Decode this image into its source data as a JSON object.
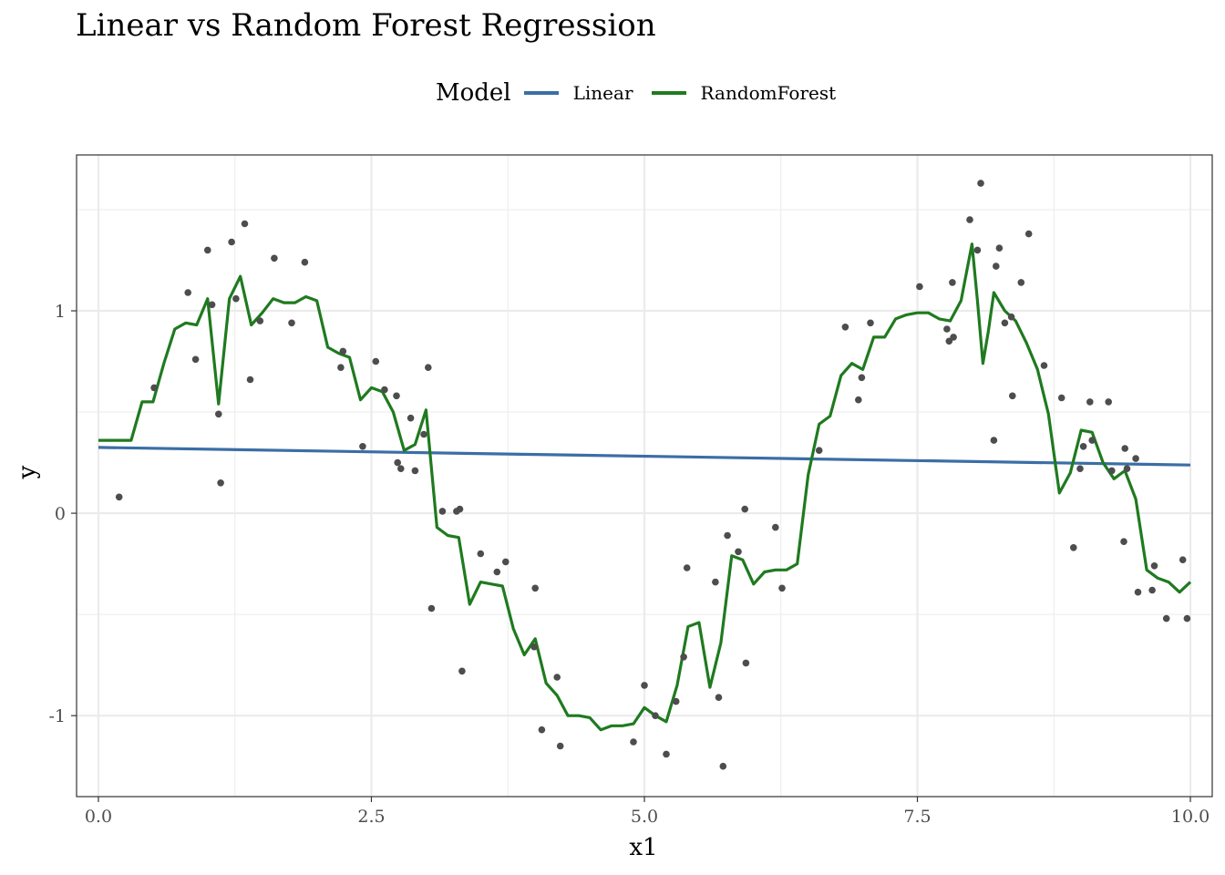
{
  "colors": {
    "linear": "#3b6ea5",
    "random_forest": "#1f7a1f",
    "points": "#4d4d4d",
    "grid": "#ebebeb",
    "panel_border": "#333333"
  },
  "chart_data": {
    "type": "scatter",
    "title": "Linear vs Random Forest Regression",
    "xlabel": "x1",
    "ylabel": "y",
    "xlim": [
      -0.2,
      10.2
    ],
    "ylim": [
      -1.4,
      1.77
    ],
    "x_ticks": [
      0.0,
      2.5,
      5.0,
      7.5,
      10.0
    ],
    "x_tick_labels": [
      "0.0",
      "2.5",
      "5.0",
      "7.5",
      "10.0"
    ],
    "y_ticks": [
      -1,
      0,
      1
    ],
    "y_tick_labels": [
      "-1",
      "0",
      "1"
    ],
    "grid": true,
    "legend": {
      "title": "Model",
      "position": "top",
      "entries": [
        "Linear",
        "RandomForest"
      ]
    },
    "points": {
      "x": [
        0.19,
        0.51,
        0.82,
        0.89,
        1.0,
        1.04,
        1.1,
        1.12,
        1.22,
        1.26,
        1.34,
        1.39,
        1.48,
        1.61,
        1.77,
        1.89,
        2.22,
        2.24,
        2.42,
        2.54,
        2.62,
        2.73,
        2.74,
        2.77,
        2.86,
        2.9,
        2.98,
        3.02,
        3.05,
        3.15,
        3.28,
        3.31,
        3.33,
        3.5,
        3.65,
        3.73,
        3.99,
        4.0,
        4.06,
        4.2,
        4.23,
        4.9,
        5.0,
        5.1,
        5.2,
        5.29,
        5.36,
        5.39,
        5.65,
        5.68,
        5.72,
        5.76,
        5.86,
        5.92,
        5.93,
        6.2,
        6.26,
        6.6,
        6.84,
        6.96,
        6.99,
        7.07,
        7.52,
        7.77,
        7.79,
        7.82,
        7.83,
        7.98,
        8.05,
        8.08,
        8.2,
        8.22,
        8.25,
        8.3,
        8.36,
        8.37,
        8.45,
        8.52,
        8.66,
        8.82,
        8.93,
        8.99,
        9.02,
        9.08,
        9.1,
        9.25,
        9.28,
        9.39,
        9.4,
        9.42,
        9.5,
        9.52,
        9.65,
        9.67,
        9.78,
        9.93,
        9.97
      ],
      "y": [
        0.08,
        0.62,
        1.09,
        0.76,
        1.3,
        1.03,
        0.49,
        0.15,
        1.34,
        1.06,
        1.43,
        0.66,
        0.95,
        1.26,
        0.94,
        1.24,
        0.72,
        0.8,
        0.33,
        0.75,
        0.61,
        0.58,
        0.25,
        0.22,
        0.47,
        0.21,
        0.39,
        0.72,
        -0.47,
        0.01,
        0.01,
        0.02,
        -0.78,
        -0.2,
        -0.29,
        -0.24,
        -0.66,
        -0.37,
        -1.07,
        -0.81,
        -1.15,
        -1.13,
        -0.85,
        -1.0,
        -1.19,
        -0.93,
        -0.71,
        -0.27,
        -0.34,
        -0.91,
        -1.25,
        -0.11,
        -0.19,
        0.02,
        -0.74,
        -0.07,
        -0.37,
        0.31,
        0.92,
        0.56,
        0.67,
        0.94,
        1.12,
        0.91,
        0.85,
        1.14,
        0.87,
        1.45,
        1.3,
        1.63,
        0.36,
        1.22,
        1.31,
        0.94,
        0.97,
        0.58,
        1.14,
        1.38,
        0.73,
        0.57,
        -0.17,
        0.22,
        0.33,
        0.55,
        0.36,
        0.55,
        0.21,
        -0.14,
        0.32,
        0.22,
        0.27,
        -0.39,
        -0.38,
        -0.26,
        -0.52,
        -0.23,
        -0.52
      ]
    },
    "series": [
      {
        "name": "Linear",
        "x": [
          0.0,
          10.0
        ],
        "y": [
          0.325,
          0.238
        ]
      },
      {
        "name": "RandomForest",
        "x": [
          0.0,
          0.3,
          0.4,
          0.5,
          0.6,
          0.7,
          0.8,
          0.9,
          1.0,
          1.1,
          1.2,
          1.3,
          1.4,
          1.5,
          1.6,
          1.7,
          1.8,
          1.9,
          2.0,
          2.1,
          2.2,
          2.3,
          2.4,
          2.5,
          2.6,
          2.7,
          2.8,
          2.9,
          3.0,
          3.1,
          3.2,
          3.3,
          3.4,
          3.5,
          3.6,
          3.7,
          3.8,
          3.9,
          4.0,
          4.1,
          4.2,
          4.3,
          4.4,
          4.5,
          4.6,
          4.7,
          4.8,
          4.9,
          5.0,
          5.1,
          5.2,
          5.3,
          5.4,
          5.5,
          5.6,
          5.7,
          5.8,
          5.9,
          6.0,
          6.1,
          6.2,
          6.3,
          6.4,
          6.5,
          6.6,
          6.7,
          6.8,
          6.9,
          7.0,
          7.1,
          7.2,
          7.3,
          7.4,
          7.5,
          7.6,
          7.7,
          7.8,
          7.9,
          8.0,
          8.05,
          8.1,
          8.15,
          8.2,
          8.3,
          8.4,
          8.5,
          8.6,
          8.7,
          8.8,
          8.9,
          9.0,
          9.1,
          9.2,
          9.3,
          9.4,
          9.5,
          9.6,
          9.7,
          9.8,
          9.9,
          10.0
        ],
        "y": [
          0.36,
          0.36,
          0.55,
          0.55,
          0.74,
          0.91,
          0.94,
          0.93,
          1.06,
          0.54,
          1.06,
          1.17,
          0.93,
          0.99,
          1.06,
          1.04,
          1.04,
          1.07,
          1.05,
          0.82,
          0.79,
          0.77,
          0.56,
          0.62,
          0.6,
          0.5,
          0.31,
          0.34,
          0.51,
          -0.07,
          -0.11,
          -0.12,
          -0.45,
          -0.34,
          -0.35,
          -0.36,
          -0.57,
          -0.7,
          -0.62,
          -0.84,
          -0.9,
          -1.0,
          -1.0,
          -1.01,
          -1.07,
          -1.05,
          -1.05,
          -1.04,
          -0.96,
          -1.0,
          -1.03,
          -0.85,
          -0.56,
          -0.54,
          -0.86,
          -0.64,
          -0.21,
          -0.23,
          -0.35,
          -0.29,
          -0.28,
          -0.28,
          -0.25,
          0.19,
          0.44,
          0.48,
          0.68,
          0.74,
          0.71,
          0.87,
          0.87,
          0.96,
          0.98,
          0.99,
          0.99,
          0.96,
          0.95,
          1.05,
          1.33,
          1.05,
          0.74,
          0.9,
          1.09,
          1.0,
          0.95,
          0.84,
          0.71,
          0.49,
          0.1,
          0.2,
          0.41,
          0.4,
          0.25,
          0.17,
          0.21,
          0.07,
          -0.28,
          -0.32,
          -0.34,
          -0.39,
          -0.34
        ]
      }
    ]
  }
}
